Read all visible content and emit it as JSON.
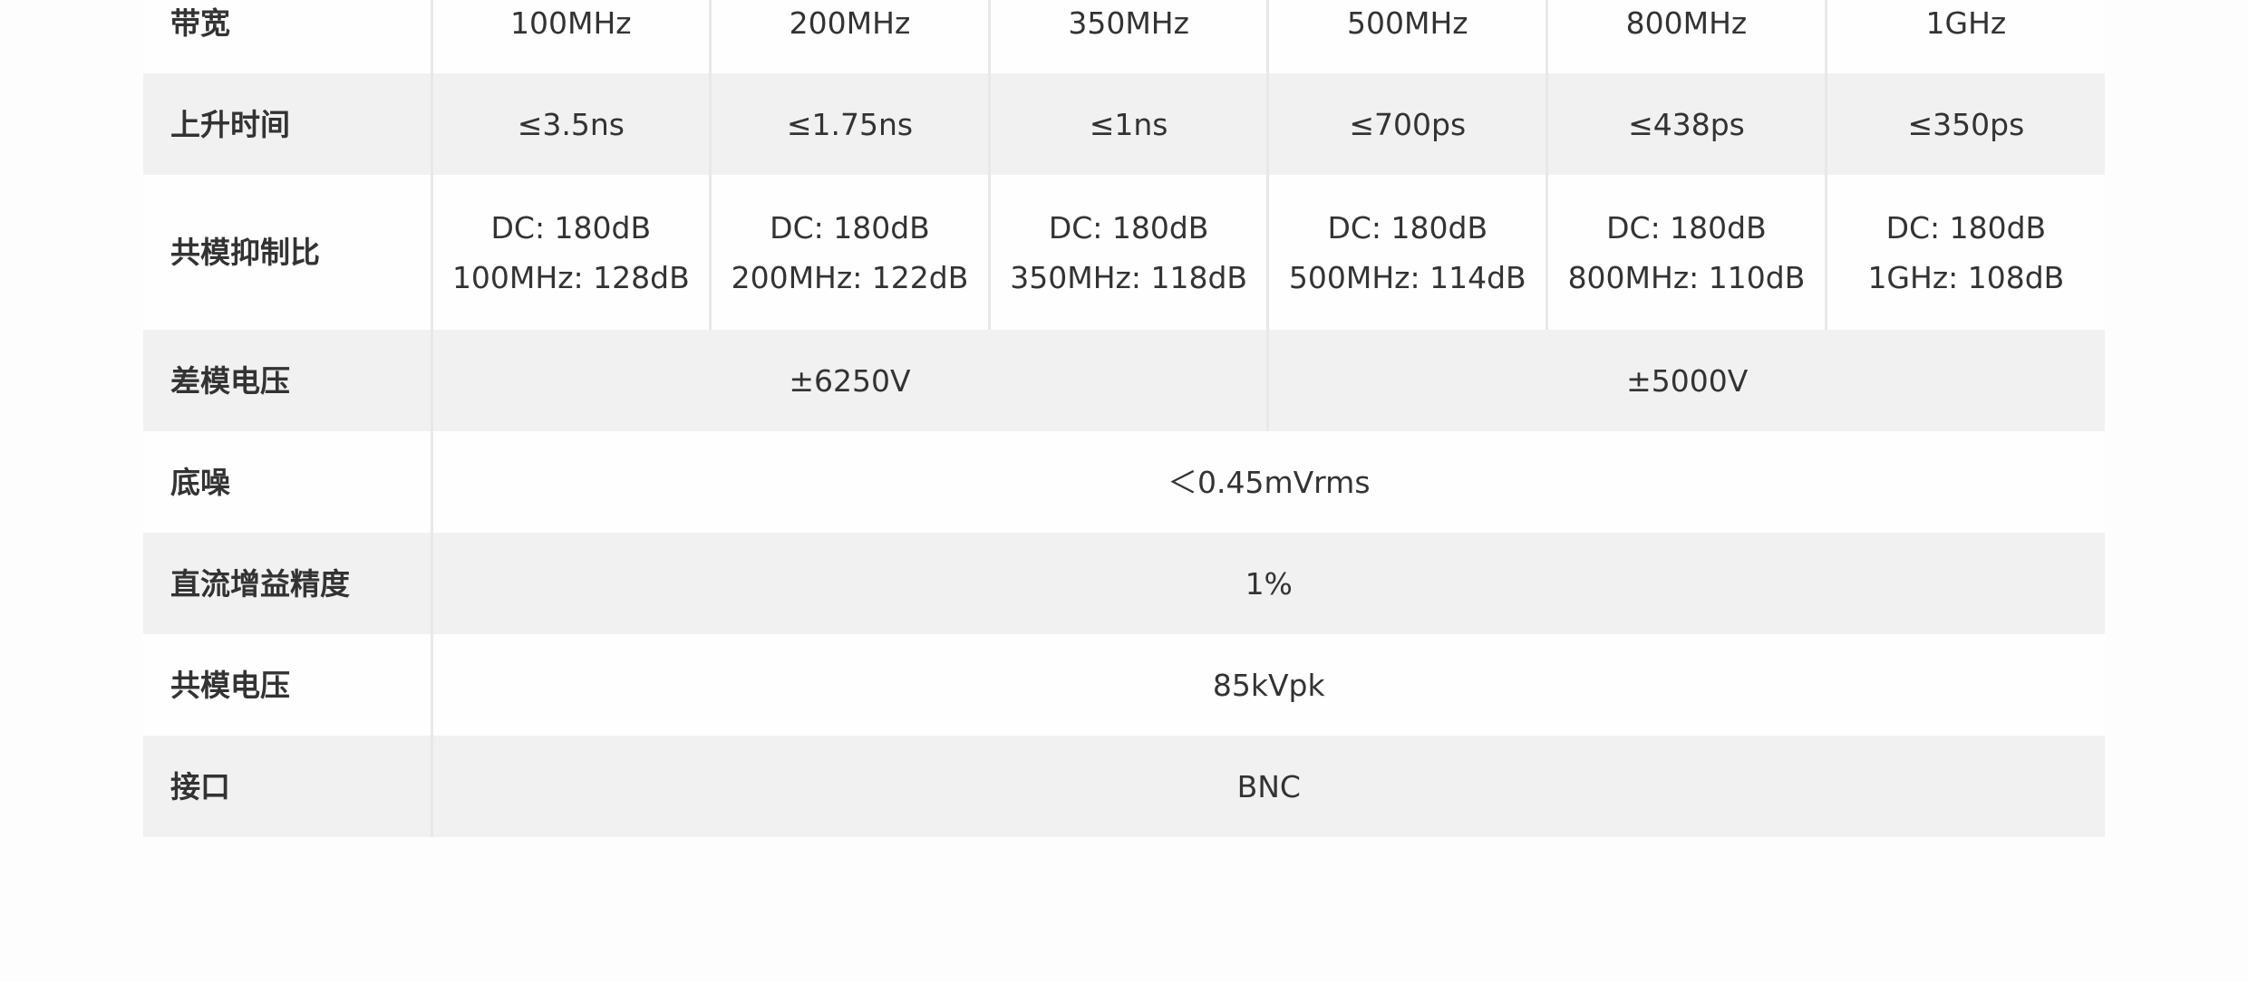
{
  "rows": [
    {
      "label": "带宽",
      "cells": [
        "100MHz",
        "200MHz",
        "350MHz",
        "500MHz",
        "800MHz",
        "1GHz"
      ]
    },
    {
      "label": "上升时间",
      "cells": [
        "≤3.5ns",
        "≤1.75ns",
        "≤1ns",
        "≤700ps",
        "≤438ps",
        "≤350ps"
      ]
    },
    {
      "label": "共模抑制比",
      "cells": [
        [
          "DC: 180dB",
          "100MHz: 128dB"
        ],
        [
          "DC: 180dB",
          "200MHz: 122dB"
        ],
        [
          "DC: 180dB",
          "350MHz: 118dB"
        ],
        [
          "DC: 180dB",
          "500MHz: 114dB"
        ],
        [
          "DC: 180dB",
          "800MHz: 110dB"
        ],
        [
          "DC: 180dB",
          "1GHz: 108dB"
        ]
      ]
    },
    {
      "label": "差模电压",
      "cells": [
        "±6250V",
        "±5000V"
      ]
    },
    {
      "label": "底噪",
      "cells": [
        "＜0.45mVrms"
      ]
    },
    {
      "label": "直流增益精度",
      "cells": [
        "1%"
      ]
    },
    {
      "label": "共模电压",
      "cells": [
        "85kVpk"
      ]
    },
    {
      "label": "接口",
      "cells": [
        "BNC"
      ]
    }
  ]
}
